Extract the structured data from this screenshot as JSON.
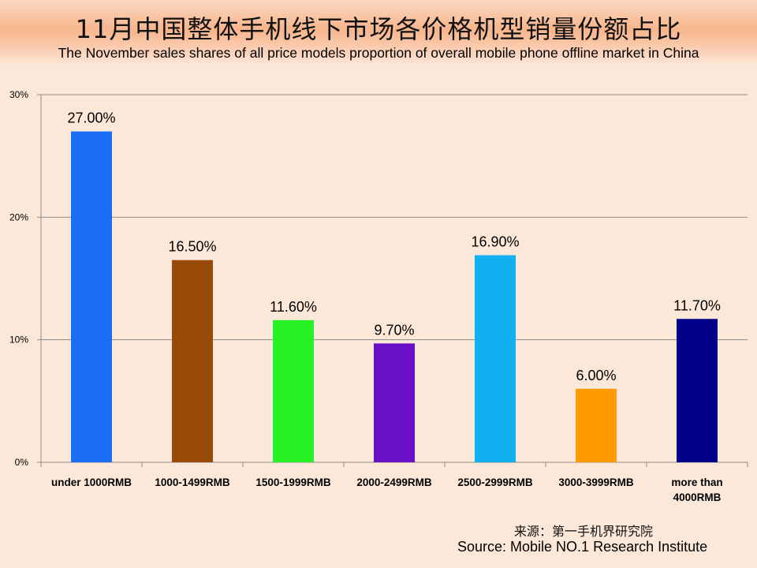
{
  "title_cn": "11月中国整体手机线下市场各价格机型销量份额占比",
  "title_en": "The November sales shares of all price models proportion of overall mobile phone offline market in China",
  "source_cn": "来源：第一手机界研究院",
  "source_en": "Source: Mobile NO.1 Research Institute",
  "chart_data": {
    "type": "bar",
    "title": "11月中国整体手机线下市场各价格机型销量份额占比",
    "subtitle": "The November sales shares of all price models proportion of overall mobile phone offline market in China",
    "categories": [
      [
        "under 1000RMB"
      ],
      [
        "1000-1499RMB"
      ],
      [
        "1500-1999RMB"
      ],
      [
        "2000-2499RMB"
      ],
      [
        "2500-2999RMB"
      ],
      [
        "3000-3999RMB"
      ],
      [
        "more than",
        "4000RMB"
      ]
    ],
    "values": [
      27.0,
      16.5,
      11.6,
      9.7,
      16.9,
      6.0,
      11.7
    ],
    "data_labels": [
      "27.00%",
      "16.50%",
      "11.60%",
      "9.70%",
      "16.90%",
      "6.00%",
      "11.70%"
    ],
    "bar_colors": [
      "#1a6ef5",
      "#984a08",
      "#26f026",
      "#6a0fc8",
      "#10b0f2",
      "#ff9a00",
      "#000088"
    ],
    "yticks": [
      0,
      10,
      20,
      30
    ],
    "ytick_labels": [
      "0%",
      "10%",
      "20%",
      "30%"
    ],
    "ylim": [
      0,
      30
    ],
    "xlabel": "",
    "ylabel": "",
    "grid": true,
    "legend": "none"
  }
}
